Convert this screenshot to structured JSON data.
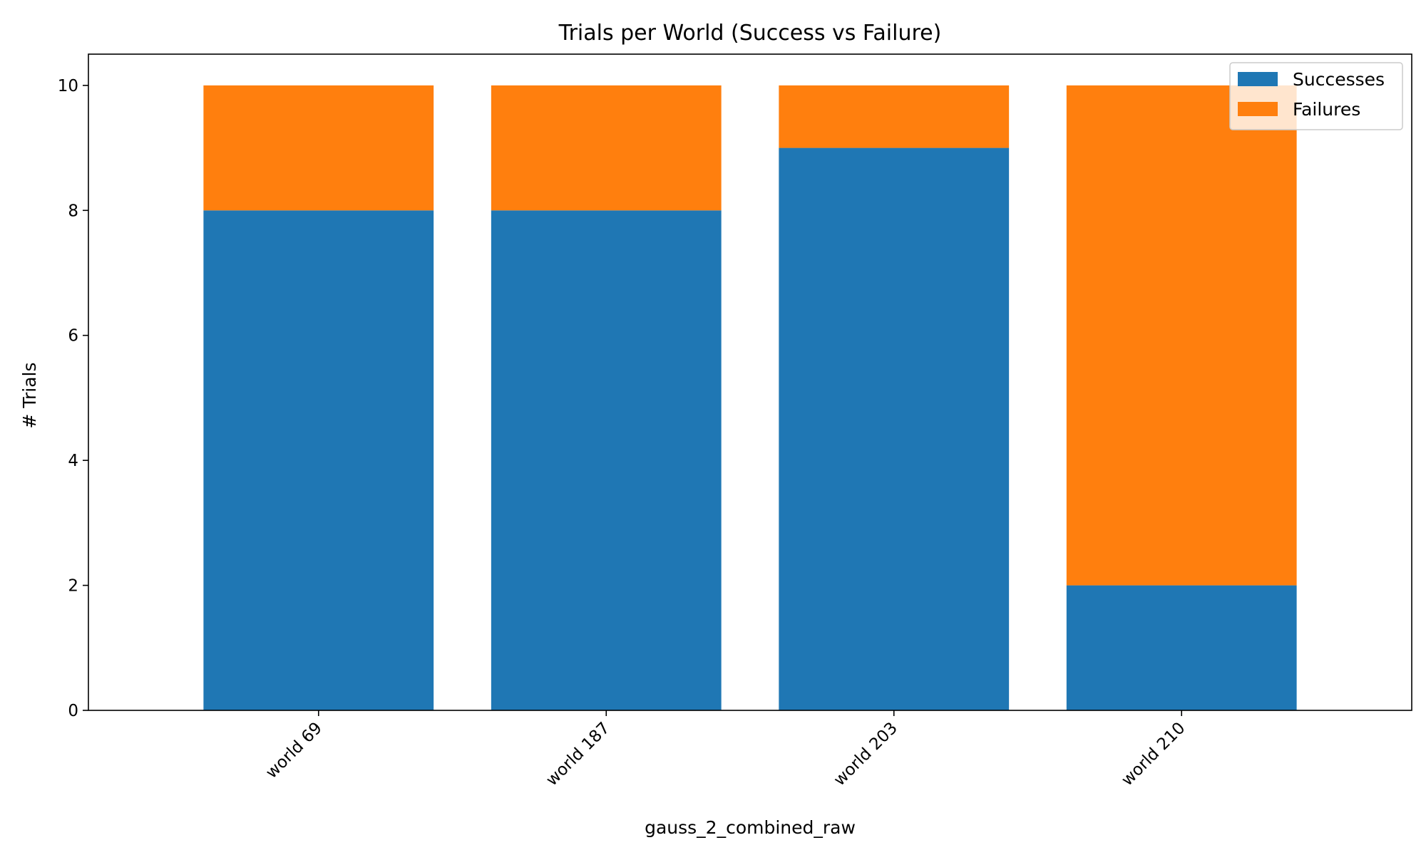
{
  "chart_data": {
    "type": "bar",
    "stacked": true,
    "title": "Trials per World (Success vs Failure)",
    "xlabel": "gauss_2_combined_raw",
    "ylabel": "# Trials",
    "categories": [
      "world 69",
      "world 187",
      "world 203",
      "world 210"
    ],
    "series": [
      {
        "name": "Successes",
        "color": "#1f77b4",
        "values": [
          8,
          8,
          9,
          2
        ]
      },
      {
        "name": "Failures",
        "color": "#ff7f0e",
        "values": [
          2,
          2,
          1,
          8
        ]
      }
    ],
    "ylim": [
      0,
      10.5
    ],
    "yticks": [
      0,
      2,
      4,
      6,
      8,
      10
    ],
    "grid": false,
    "legend_position": "top-right"
  }
}
